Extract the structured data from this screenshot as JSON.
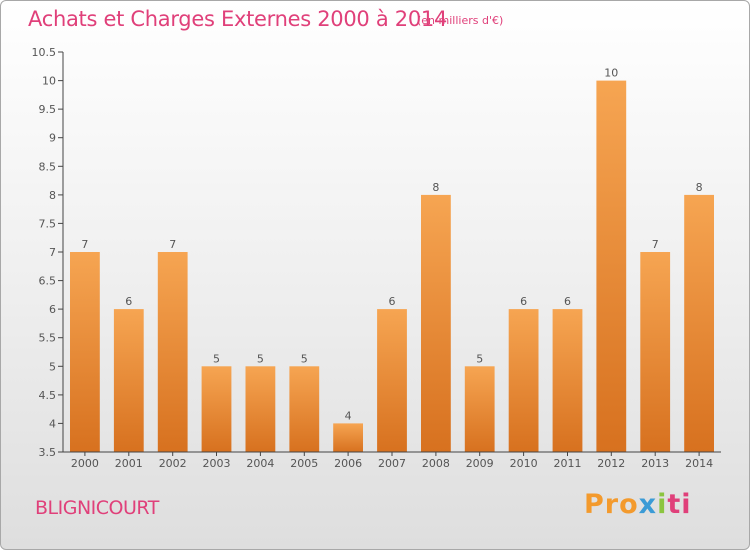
{
  "header": {
    "title": "Achats et Charges Externes 2000 à 2014",
    "subtitle": "(en milliers d'€)"
  },
  "footer": {
    "commune": "BLIGNICOURT",
    "brand_parts": [
      "Pro",
      "x",
      "i",
      "ti"
    ]
  },
  "colors": {
    "title": "#e0407a",
    "bar_top": "#f6a552",
    "bar_bottom": "#d7711f"
  },
  "chart_data": {
    "type": "bar",
    "title": "Achats et Charges Externes 2000 à 2014",
    "subtitle": "(en milliers d'€)",
    "xlabel": "",
    "ylabel": "",
    "categories": [
      "2000",
      "2001",
      "2002",
      "2003",
      "2004",
      "2005",
      "2006",
      "2007",
      "2008",
      "2009",
      "2010",
      "2011",
      "2012",
      "2013",
      "2014"
    ],
    "values": [
      7,
      6,
      7,
      5,
      5,
      5,
      4,
      6,
      8,
      5,
      6,
      6,
      10,
      7,
      8
    ],
    "data_labels": [
      "7",
      "6",
      "7",
      "5",
      "5",
      "5",
      "4",
      "6",
      "8",
      "5",
      "6",
      "6",
      "10",
      "7",
      "8"
    ],
    "ylim": [
      3.5,
      10.5
    ],
    "yticks": [
      "3.5",
      "4",
      "4.5",
      "5",
      "5.5",
      "6",
      "6.5",
      "7",
      "7.5",
      "8",
      "8.5",
      "9",
      "9.5",
      "10",
      "10.5"
    ],
    "grid": false,
    "legend": "none"
  }
}
